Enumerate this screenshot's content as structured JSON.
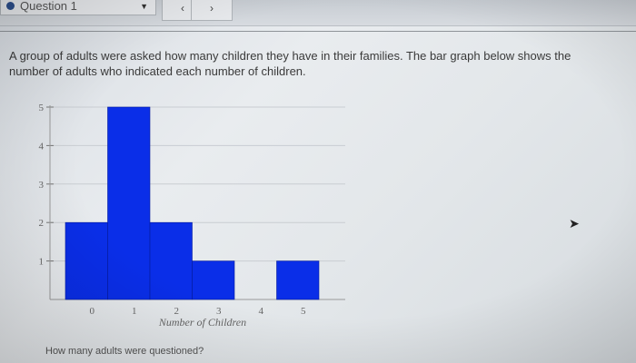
{
  "header": {
    "question_selector": "Question 1",
    "back_symbol": "‹",
    "forward_symbol": "›"
  },
  "prompt": "A group of adults were asked how many children they have in their families. The bar graph below shows the number of adults who indicated each number of children.",
  "question_text": "How many adults were questioned?",
  "chart_data": {
    "type": "bar",
    "categories": [
      "0",
      "1",
      "2",
      "3",
      "4",
      "5"
    ],
    "values": [
      2,
      5,
      2,
      1,
      0,
      1
    ],
    "title": "",
    "xlabel": "Number of Children",
    "ylabel": "",
    "ylim": [
      0,
      5
    ],
    "yticks": [
      "1",
      "2",
      "3",
      "4",
      "5"
    ],
    "bar_color": "#0a2ee8",
    "grid": true
  },
  "colors": {
    "accent": "#2d4f8c",
    "bar": "#0a2ee8"
  }
}
